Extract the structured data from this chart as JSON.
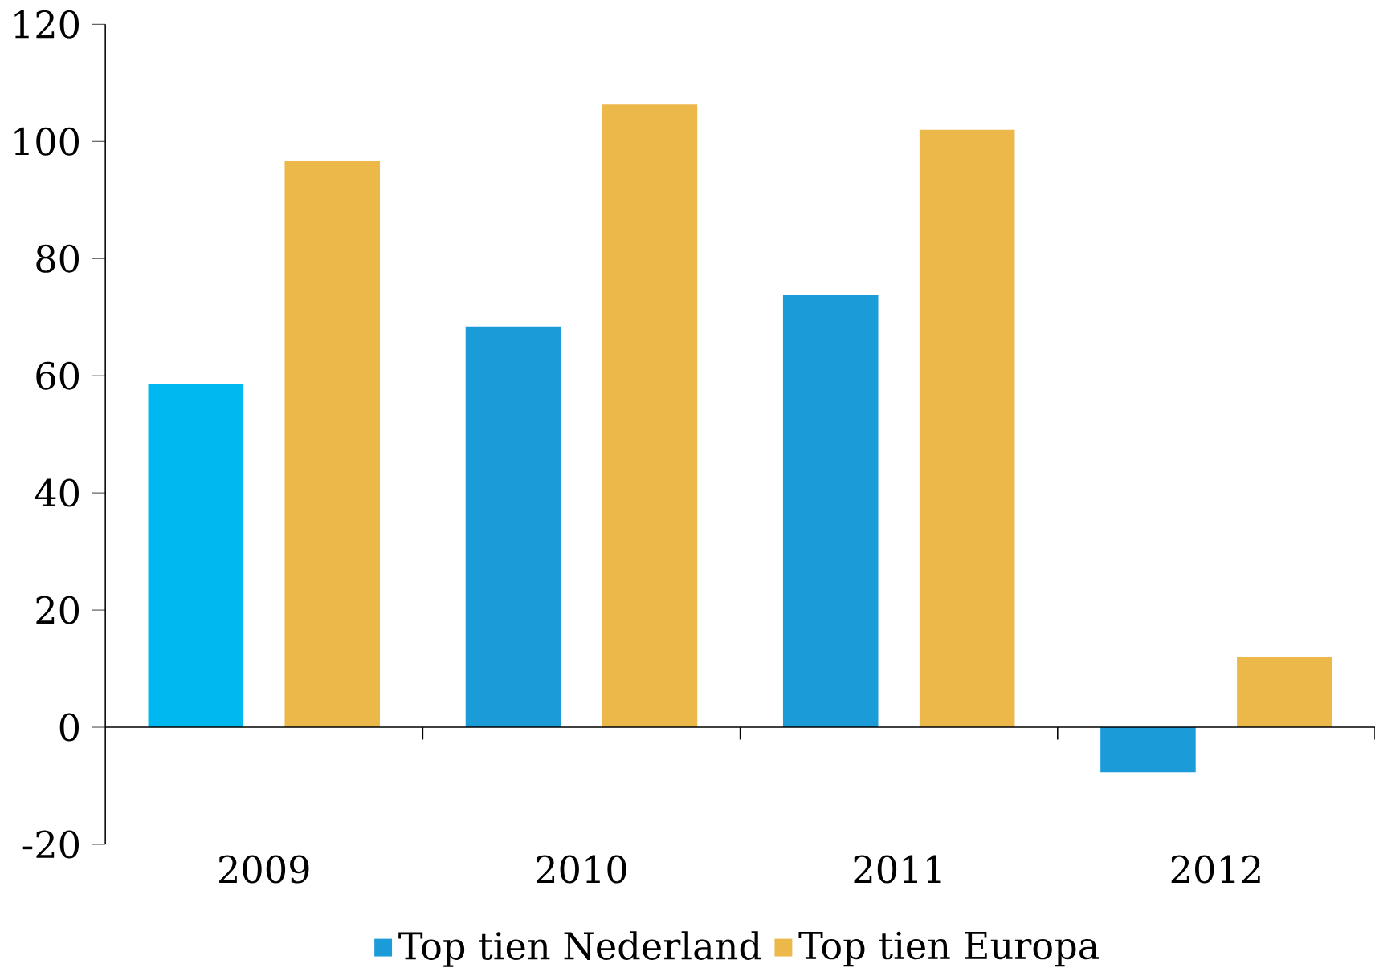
{
  "chart_data": {
    "type": "bar",
    "categories": [
      "2009",
      "2010",
      "2011",
      "2012"
    ],
    "series": [
      {
        "name": "Top tien Nederland",
        "color": "#1b9cd9",
        "colors": [
          "#00b8f0",
          "#1b9cd9",
          "#1b9cd9",
          "#1b9cd9"
        ],
        "values": [
          58.5,
          68.4,
          73.8,
          -7.7
        ]
      },
      {
        "name": "Top tien Europa",
        "color": "#ecb84a",
        "values": [
          96.6,
          106.3,
          102,
          12
        ]
      }
    ],
    "ylim": [
      -20,
      120
    ],
    "yticks": [
      -20,
      0,
      20,
      40,
      60,
      80,
      100,
      120
    ],
    "legend": "bottom"
  }
}
